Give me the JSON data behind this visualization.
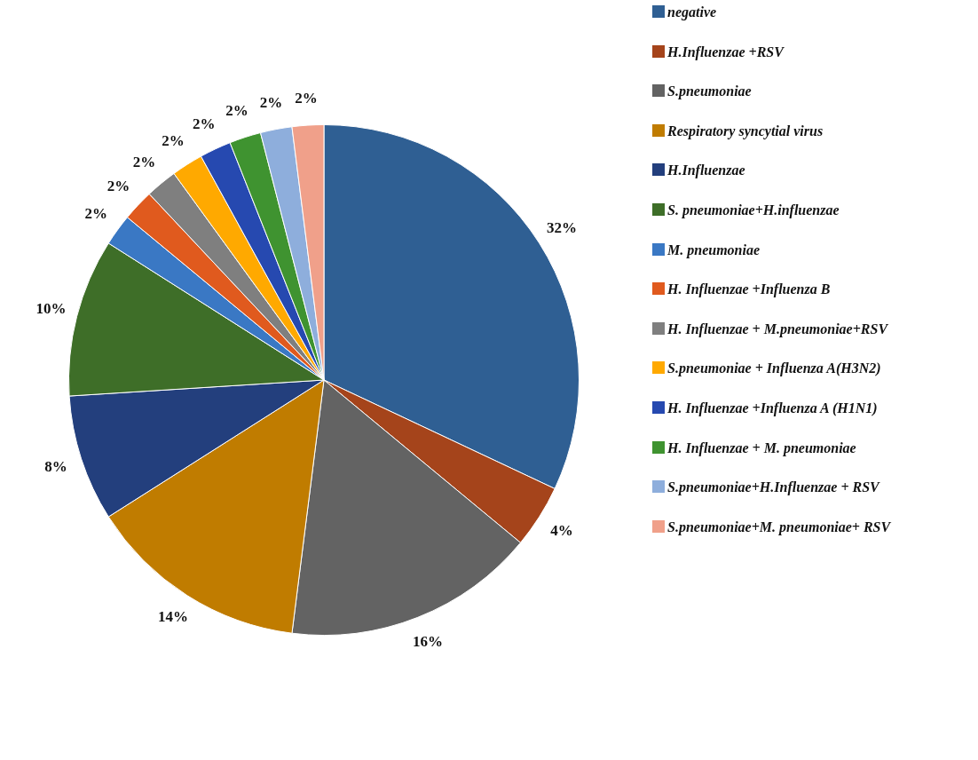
{
  "chart_data": {
    "type": "pie",
    "legend": "right",
    "categories": [
      "negative",
      "H.Influenzae +RSV",
      "S.pneumoniae",
      "Respiratory syncytial virus",
      "H.Influenzae",
      "S. pneumoniae+H.influenzae",
      "M. pneumoniae",
      "H. Influenzae +Influenza B",
      "H. Influenzae + M.pneumoniae+RSV",
      "S.pneumoniae + Influenza A(H3N2)",
      "H. Influenzae +Influenza A (H1N1)",
      "H. Influenzae + M. pneumoniae",
      "S.pneumoniae+H.Influenzae + RSV",
      "S.pneumoniae+M. pneumoniae+ RSV"
    ],
    "values": [
      32,
      4,
      16,
      14,
      8,
      10,
      2,
      2,
      2,
      2,
      2,
      2,
      2,
      2
    ],
    "value_labels": [
      "32%",
      "4%",
      "16%",
      "14%",
      "8%",
      "10%",
      "2%",
      "2%",
      "2%",
      "2%",
      "2%",
      "2%",
      "2%",
      "2%"
    ],
    "colors": [
      "#2f5f93",
      "#a5441b",
      "#636363",
      "#c07c00",
      "#233f7d",
      "#3e6e28",
      "#3a78c4",
      "#e05a1e",
      "#7f7f7f",
      "#ffa900",
      "#2649b0",
      "#3f9330",
      "#8eaedc",
      "#f0a08a"
    ]
  }
}
